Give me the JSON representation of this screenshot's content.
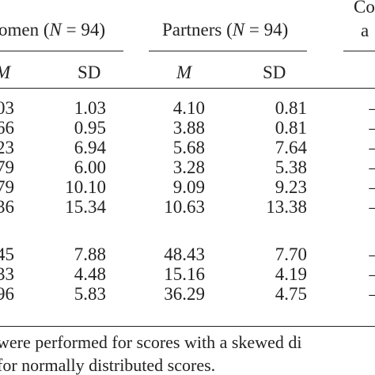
{
  "table": {
    "group_headers": {
      "women_prefix": "omen (",
      "women_n": "N",
      "women_suffix": " = 94)",
      "partners_prefix": "Partners (",
      "partners_n": "N",
      "partners_suffix": " = 94)",
      "comparison_line1": "Co",
      "comparison_line2": "a"
    },
    "sub_headers": {
      "women_m": "M",
      "women_sd": "SD",
      "partners_m": "M",
      "partners_sd": "SD"
    },
    "rows": [
      {
        "women_m": "03",
        "women_sd": "1.03",
        "partners_m": "4.10",
        "partners_sd": "0.81",
        "comparison": "–"
      },
      {
        "women_m": "66",
        "women_sd": "0.95",
        "partners_m": "3.88",
        "partners_sd": "0.81",
        "comparison": "–"
      },
      {
        "women_m": "23",
        "women_sd": "6.94",
        "partners_m": "5.68",
        "partners_sd": "7.64",
        "comparison": "–"
      },
      {
        "women_m": "79",
        "women_sd": "6.00",
        "partners_m": "3.28",
        "partners_sd": "5.38",
        "comparison": "–"
      },
      {
        "women_m": "79",
        "women_sd": "10.10",
        "partners_m": "9.09",
        "partners_sd": "9.23",
        "comparison": "–"
      },
      {
        "women_m": "36",
        "women_sd": "15.34",
        "partners_m": "10.63",
        "partners_sd": "13.38",
        "comparison": "–"
      },
      {
        "women_m": "45",
        "women_sd": "7.88",
        "partners_m": "48.43",
        "partners_sd": "7.70",
        "comparison": "–"
      },
      {
        "women_m": "33",
        "women_sd": "4.48",
        "partners_m": "15.16",
        "partners_sd": "4.19",
        "comparison": "–"
      },
      {
        "women_m": "96",
        "women_sd": "5.83",
        "partners_m": "36.29",
        "partners_sd": "4.75",
        "comparison": "–"
      }
    ],
    "footnote_line1": "were performed for scores with a skewed di",
    "footnote_line2": "for normally distributed scores."
  }
}
